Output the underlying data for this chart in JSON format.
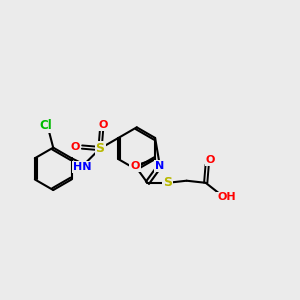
{
  "bg_color": "#ebebeb",
  "bond_color": "#000000",
  "colors": {
    "C": "#000000",
    "N": "#0000ff",
    "O": "#ff0000",
    "S": "#b8b800",
    "Cl": "#00bb00",
    "H": "#000000"
  },
  "figsize": [
    3.0,
    3.0
  ],
  "dpi": 100
}
